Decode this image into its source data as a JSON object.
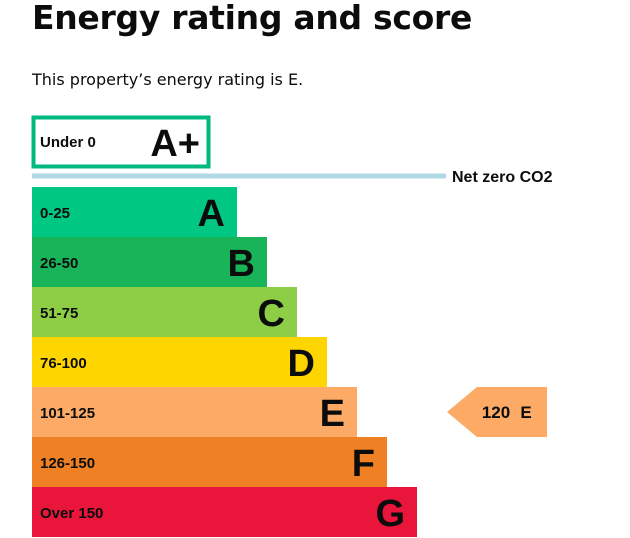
{
  "page": {
    "title": "Energy rating and score",
    "intro": "This property’s energy rating is E."
  },
  "chart_data": {
    "type": "bar",
    "title": "",
    "bands": [
      {
        "range": "Under 0",
        "letter": "A+",
        "color": "#ffffff",
        "outline": "#00b97f",
        "dark_label": true
      },
      {
        "range": "0-25",
        "letter": "A",
        "color": "#00c781"
      },
      {
        "range": "26-50",
        "letter": "B",
        "color": "#19b459"
      },
      {
        "range": "51-75",
        "letter": "C",
        "color": "#8dce46"
      },
      {
        "range": "76-100",
        "letter": "D",
        "color": "#ffd500"
      },
      {
        "range": "101-125",
        "letter": "E",
        "color": "#fcaa65"
      },
      {
        "range": "126-150",
        "letter": "F",
        "color": "#ef8023"
      },
      {
        "range": "Over 150",
        "letter": "G",
        "color": "#e9153b"
      }
    ],
    "net_zero": {
      "label": "Net zero CO2",
      "color": "#b1d8e6"
    },
    "current": {
      "score": 120,
      "letter": "E",
      "color": "#fcaa65"
    }
  }
}
